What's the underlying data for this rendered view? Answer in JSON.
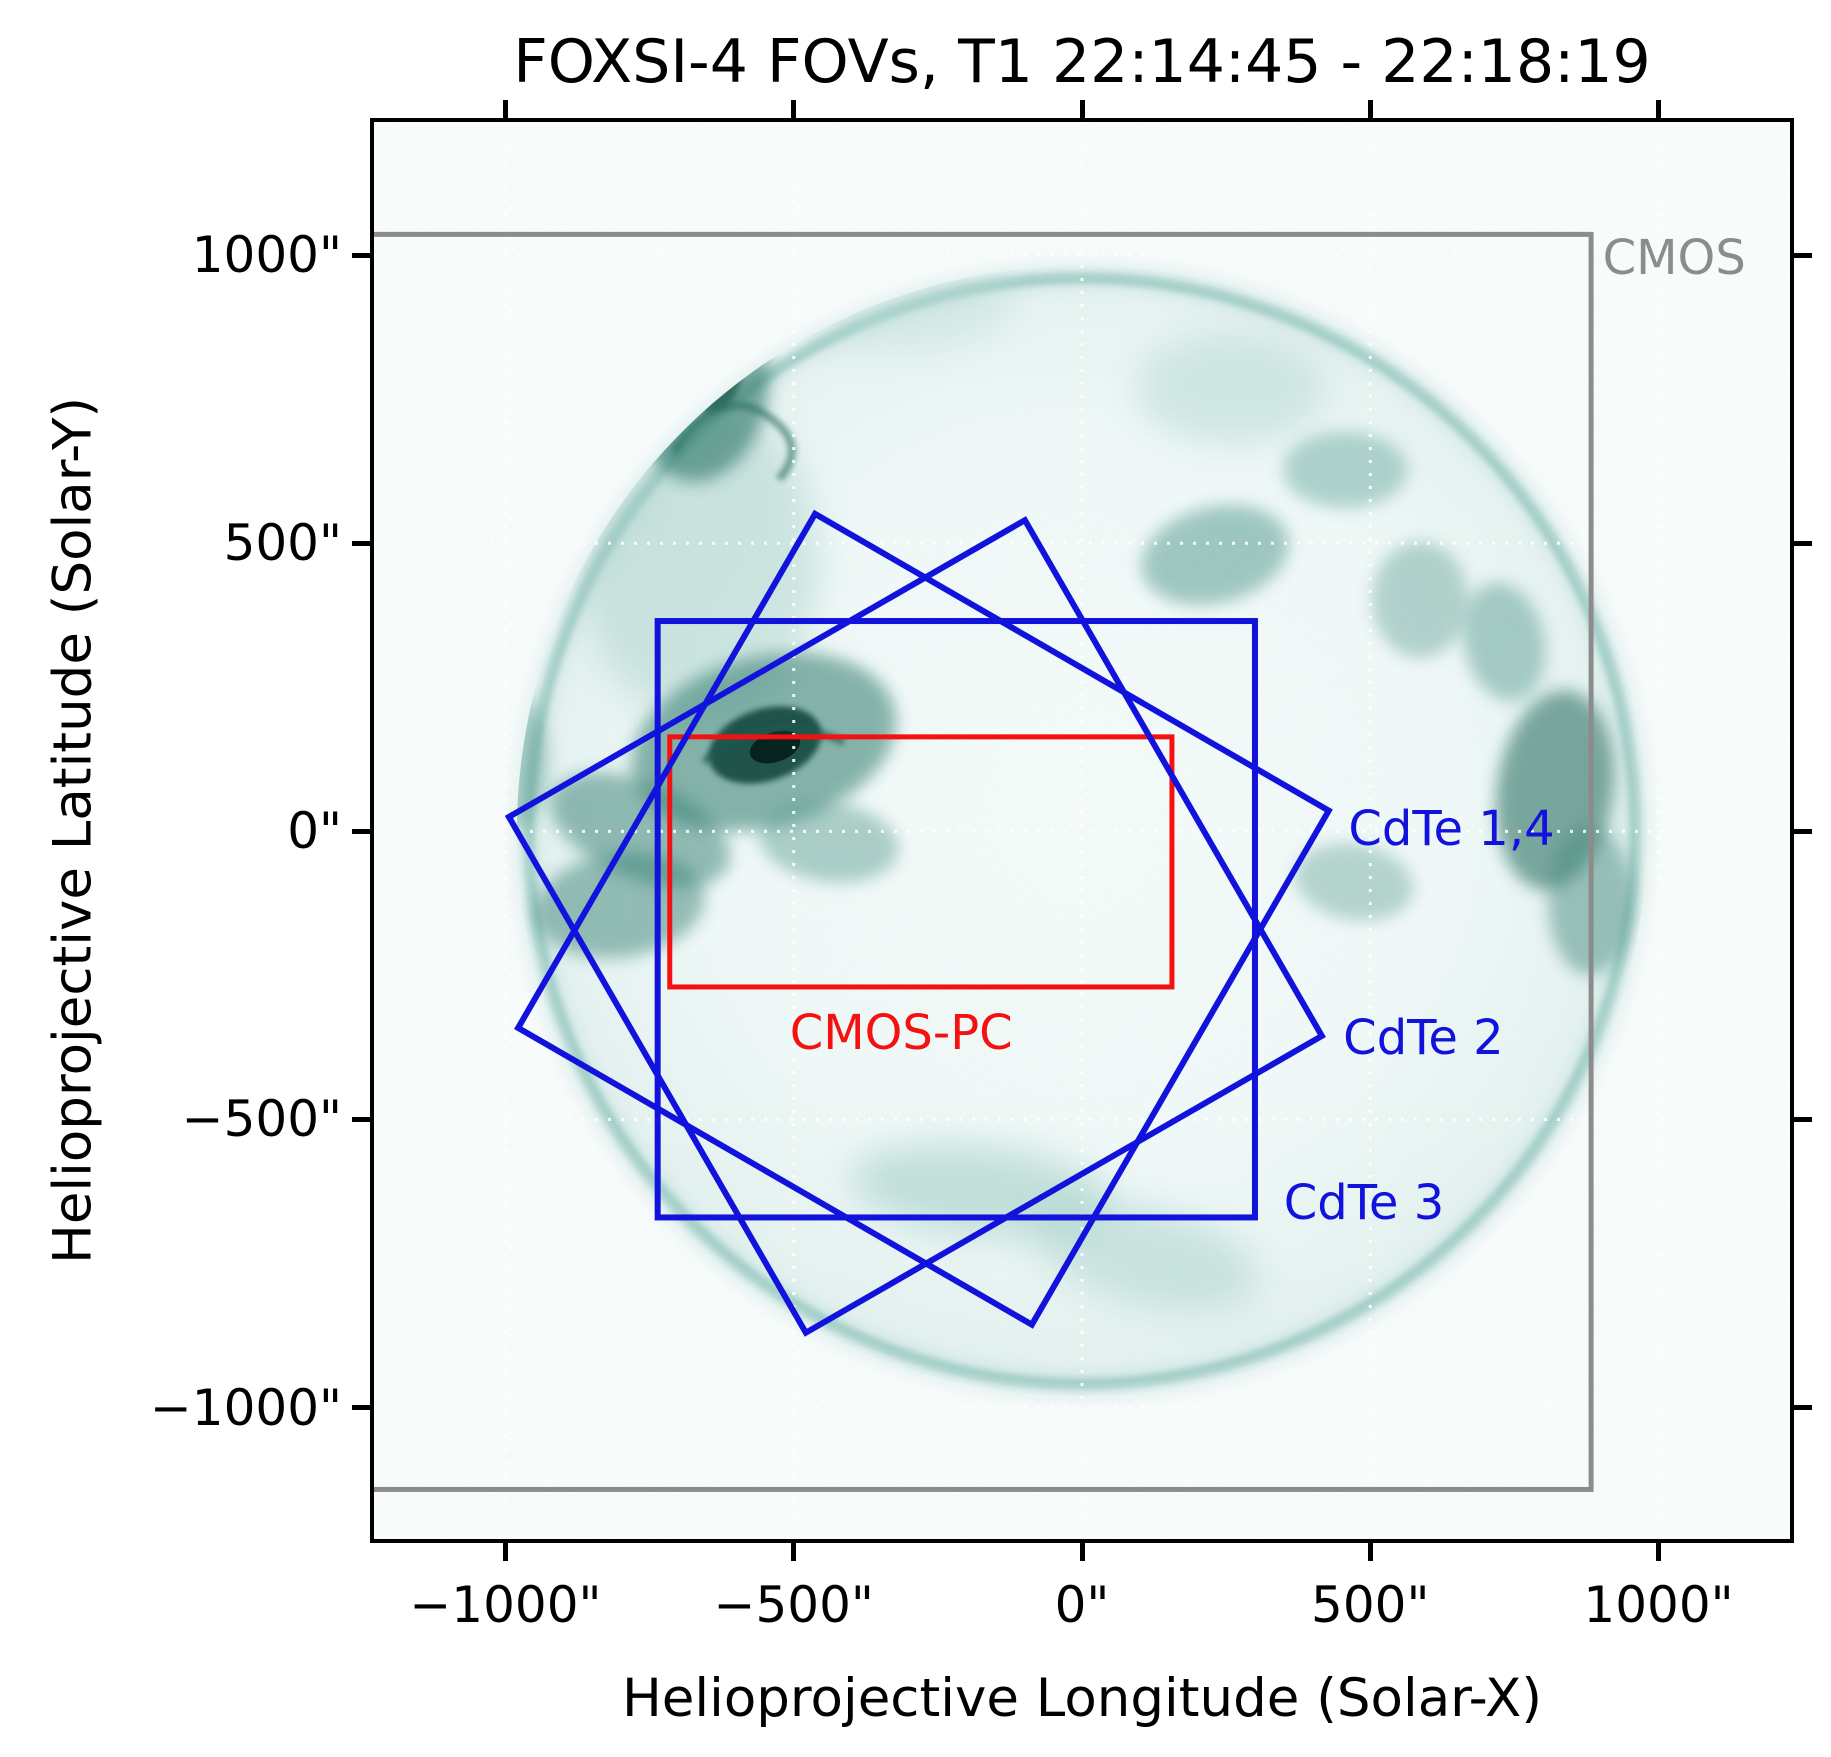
{
  "chart_data": {
    "type": "heatmap",
    "title": "FOXSI-4 FOVs, T1 22:14:45 - 22:18:19",
    "xlabel": "Helioprojective Longitude (Solar-X)",
    "ylabel": "Helioprojective Latitude (Solar-Y)",
    "xlim": [
      -1228,
      1228
    ],
    "ylim": [
      -1228,
      1231
    ],
    "x_ticks": [
      {
        "value": -1000,
        "label": "−1000\""
      },
      {
        "value": -500,
        "label": "−500\""
      },
      {
        "value": 0,
        "label": "0\""
      },
      {
        "value": 500,
        "label": "500\""
      },
      {
        "value": 1000,
        "label": "1000\""
      }
    ],
    "y_ticks": [
      {
        "value": 1000,
        "label": "1000\""
      },
      {
        "value": 500,
        "label": "500\""
      },
      {
        "value": 0,
        "label": "0\""
      },
      {
        "value": -500,
        "label": "−500\""
      },
      {
        "value": -1000,
        "label": "−1000\""
      }
    ],
    "grid": {
      "style": "white-dotted",
      "positions": [
        -1000,
        -500,
        0,
        500,
        1000
      ]
    },
    "background": {
      "description": "Inverted teal EUV solar disk image",
      "sun_center_arcsec": [
        0,
        0
      ],
      "sun_radius_arcsec": 960
    },
    "fovs": [
      {
        "id": "cmos",
        "label": "CMOS",
        "color": "#8c8c8c",
        "line_width": 5,
        "shape": "rect",
        "x": [
          -1296,
          883
        ],
        "y": [
          -1142,
          1036
        ],
        "label_anchor": {
          "x": 903,
          "y": 995
        }
      },
      {
        "id": "cmos-pc",
        "label": "CMOS-PC",
        "color": "#f61111",
        "line_width": 5,
        "shape": "rect",
        "x": [
          -715,
          156
        ],
        "y": [
          -270,
          164
        ],
        "label_anchor": {
          "x": -507,
          "y": -350
        }
      },
      {
        "id": "cdte-1-4",
        "label": "CdTe 1,4",
        "color": "#1212dd",
        "line_width": 6,
        "shape": "polygon",
        "points": [
          [
            -978,
            -341
          ],
          [
            -463,
            551
          ],
          [
            428,
            36
          ],
          [
            -87,
            -856
          ]
        ],
        "label_anchor": {
          "x": 462,
          "y": 4
        }
      },
      {
        "id": "cdte-2",
        "label": "CdTe 2",
        "color": "#1212dd",
        "line_width": 6,
        "shape": "polygon",
        "points": [
          [
            -994,
            25
          ],
          [
            -99,
            540
          ],
          [
            416,
            -355
          ],
          [
            -479,
            -870
          ]
        ],
        "label_anchor": {
          "x": 453,
          "y": -358
        }
      },
      {
        "id": "cdte-3",
        "label": "CdTe 3",
        "color": "#1212dd",
        "line_width": 6,
        "shape": "rect",
        "x": [
          -736,
          300
        ],
        "y": [
          -670,
          365
        ],
        "label_anchor": {
          "x": 350,
          "y": -645
        }
      }
    ]
  }
}
